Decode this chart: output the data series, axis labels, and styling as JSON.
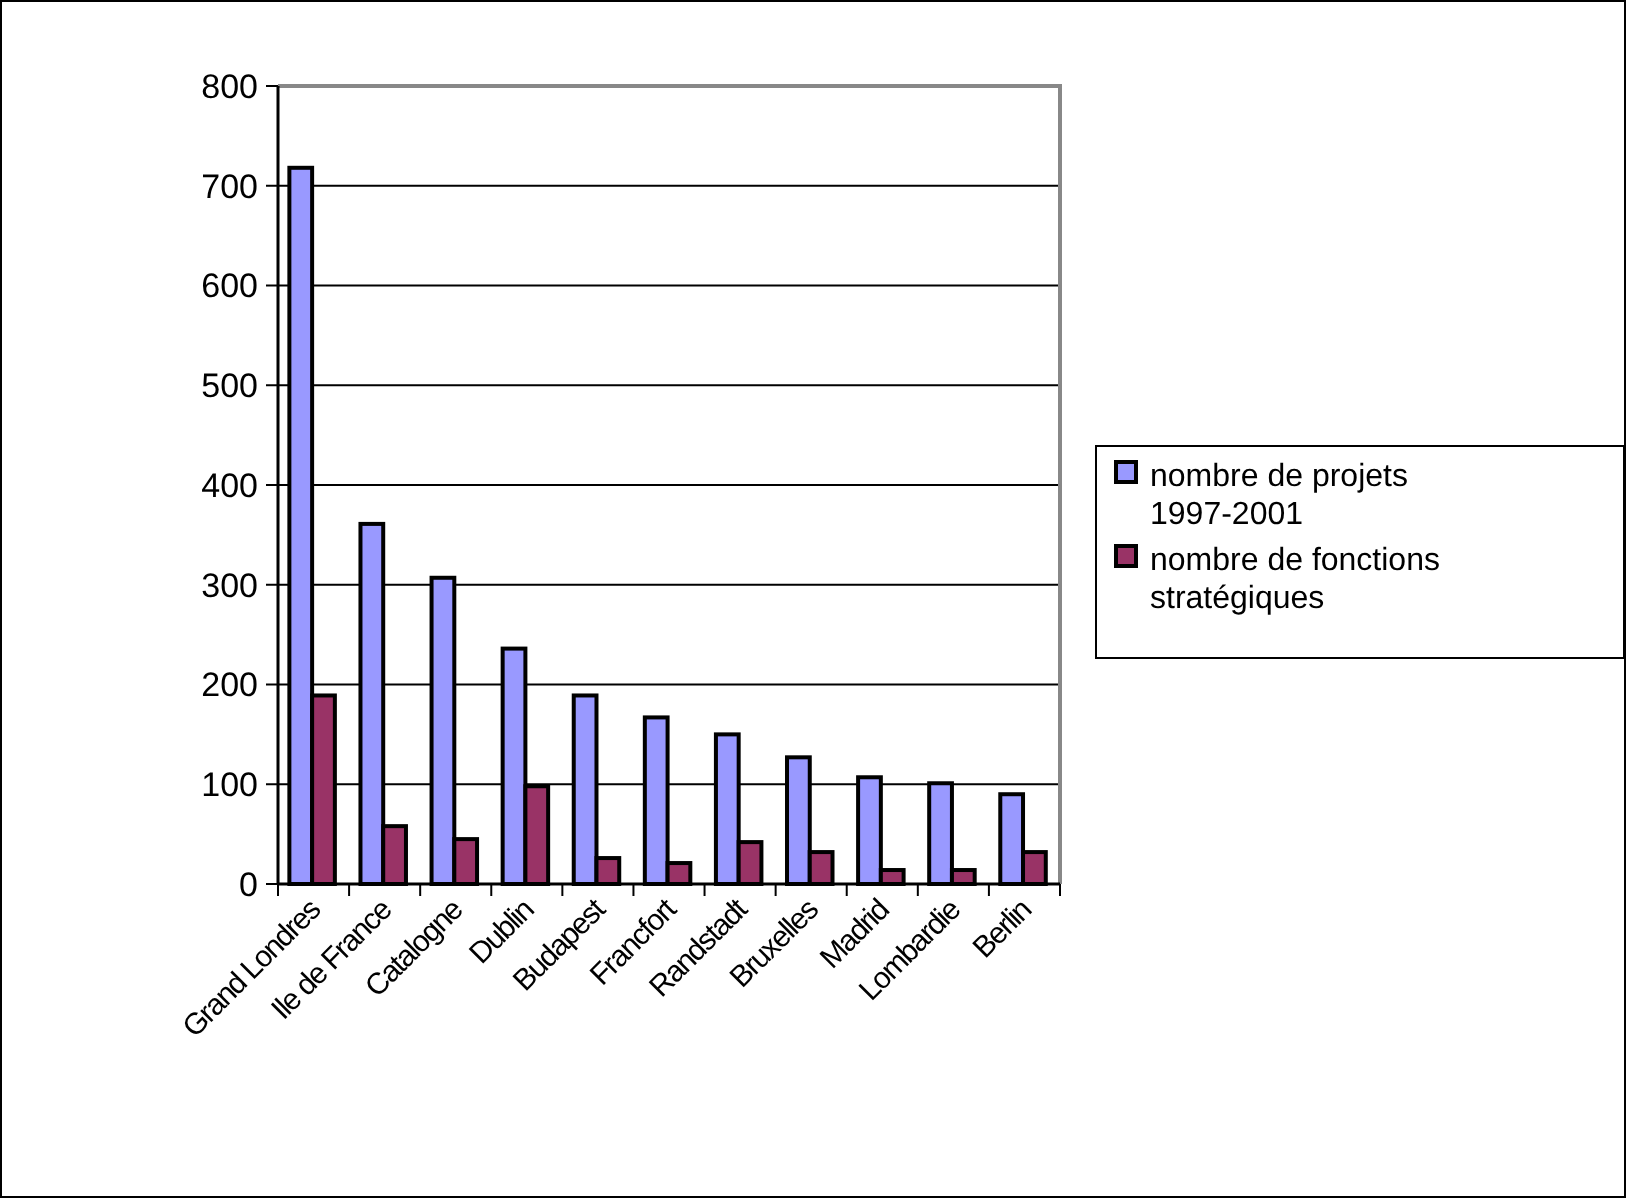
{
  "chart_data": {
    "type": "bar",
    "categories": [
      "Grand Londres",
      "Ile de France",
      "Catalogne",
      "Dublin",
      "Budapest",
      "Francfort",
      "Randstadt",
      "Bruxelles",
      "Madrid",
      "Lombardie",
      "Berlin"
    ],
    "series": [
      {
        "name": "nombre de projets 1997-2001",
        "color": "#9999ff",
        "values": [
          718,
          361,
          307,
          236,
          189,
          167,
          150,
          127,
          107,
          101,
          90
        ]
      },
      {
        "name": "nombre de fonctions stratégiques",
        "color": "#993366",
        "values": [
          189,
          58,
          45,
          98,
          26,
          21,
          42,
          32,
          14,
          14,
          32
        ]
      }
    ],
    "ylim": [
      0,
      800
    ],
    "yticks": [
      0,
      100,
      200,
      300,
      400,
      500,
      600,
      700,
      800
    ],
    "grid": "y",
    "legend": "right"
  }
}
